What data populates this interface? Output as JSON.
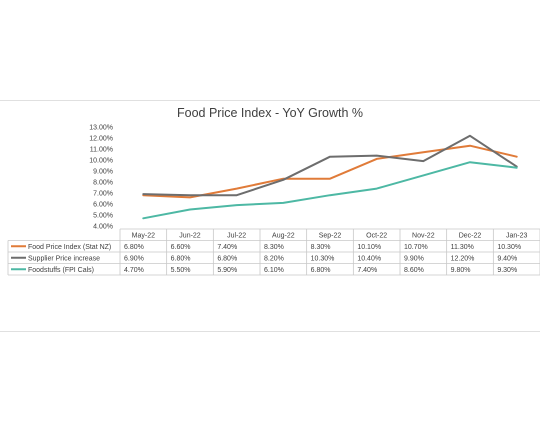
{
  "chart_data": {
    "type": "line",
    "title": "Food Price Index - YoY Growth %",
    "categories": [
      "May-22",
      "Jun-22",
      "Jul-22",
      "Aug-22",
      "Sep-22",
      "Oct-22",
      "Nov-22",
      "Dec-22",
      "Jan-23"
    ],
    "ylim": [
      4,
      13
    ],
    "y_ticks": [
      "4.00%",
      "5.00%",
      "6.00%",
      "7.00%",
      "8.00%",
      "9.00%",
      "10.00%",
      "11.00%",
      "12.00%",
      "13.00%"
    ],
    "grid": false,
    "legend": "data-table-left",
    "series": [
      {
        "name": "Food Price Index (Stat NZ)",
        "color": "#e07b39",
        "values": [
          6.8,
          6.6,
          7.4,
          8.3,
          8.3,
          10.1,
          10.7,
          11.3,
          10.3
        ],
        "labels": [
          "6.80%",
          "6.60%",
          "7.40%",
          "8.30%",
          "8.30%",
          "10.10%",
          "10.70%",
          "11.30%",
          "10.30%"
        ]
      },
      {
        "name": "Supplier Price increase",
        "color": "#6d6d6d",
        "values": [
          6.9,
          6.8,
          6.8,
          8.2,
          10.3,
          10.4,
          9.9,
          12.2,
          9.4
        ],
        "labels": [
          "6.90%",
          "6.80%",
          "6.80%",
          "8.20%",
          "10.30%",
          "10.40%",
          "9.90%",
          "12.20%",
          "9.40%"
        ]
      },
      {
        "name": "Foodstuffs (FPI Cals)",
        "color": "#4db8a4",
        "values": [
          4.7,
          5.5,
          5.9,
          6.1,
          6.8,
          7.4,
          8.6,
          9.8,
          9.3
        ],
        "labels": [
          "4.70%",
          "5.50%",
          "5.90%",
          "6.10%",
          "6.80%",
          "7.40%",
          "8.60%",
          "9.80%",
          "9.30%"
        ]
      }
    ]
  }
}
